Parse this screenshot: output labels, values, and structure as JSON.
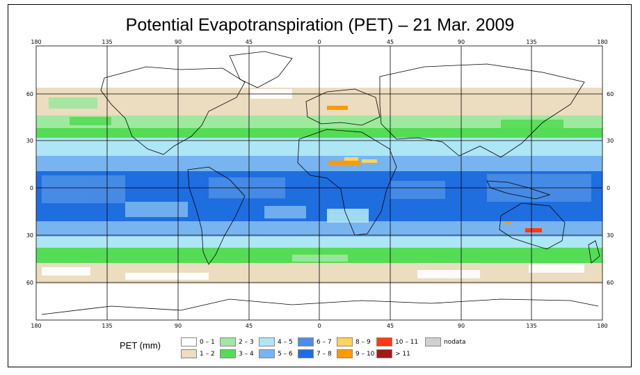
{
  "title": "Potential Evapotranspiration (PET) – 21 Mar. 2009",
  "map": {
    "lon_ticks": [
      "180",
      "135",
      "90",
      "45",
      "0",
      "45",
      "90",
      "135",
      "180"
    ],
    "lat_ticks_left": [
      "60",
      "30",
      "0",
      "30",
      "60"
    ],
    "lat_ticks_right": [
      "60",
      "30",
      "0",
      "30",
      "60"
    ],
    "ocean_color": "#ffffff"
  },
  "legend": {
    "title": "PET (mm)",
    "items": [
      {
        "label": "0 – 1",
        "color": "#ffffff"
      },
      {
        "label": "1 – 2",
        "color": "#ecdcc0"
      },
      {
        "label": "2 – 3",
        "color": "#9fe89f"
      },
      {
        "label": "3 – 4",
        "color": "#55dc55"
      },
      {
        "label": "4 – 5",
        "color": "#ade6f5"
      },
      {
        "label": "5 – 6",
        "color": "#78b4f0"
      },
      {
        "label": "6 – 7",
        "color": "#4a8ee6"
      },
      {
        "label": "7 – 8",
        "color": "#1f6ee0"
      },
      {
        "label": "8 – 9",
        "color": "#ffd45a"
      },
      {
        "label": "9 – 10",
        "color": "#ff9a00"
      },
      {
        "label": "10 – 11",
        "color": "#ff3a10"
      },
      {
        "label": "> 11",
        "color": "#a01a1a"
      },
      {
        "label": "nodata",
        "color": "#d0d0d0"
      }
    ]
  }
}
